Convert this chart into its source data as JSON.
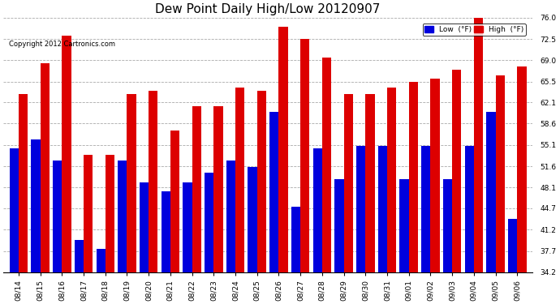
{
  "title": "Dew Point Daily High/Low 20120907",
  "copyright": "Copyright 2012 Cartronics.com",
  "dates": [
    "08/14",
    "08/15",
    "08/16",
    "08/17",
    "08/18",
    "08/19",
    "08/20",
    "08/21",
    "08/22",
    "08/23",
    "08/24",
    "08/25",
    "08/26",
    "08/27",
    "08/28",
    "08/29",
    "08/30",
    "08/31",
    "09/01",
    "09/02",
    "09/03",
    "09/04",
    "09/05",
    "09/06"
  ],
  "low": [
    54.5,
    56.0,
    52.5,
    39.5,
    38.0,
    52.5,
    49.0,
    47.5,
    49.0,
    50.5,
    52.5,
    51.5,
    60.5,
    45.0,
    54.5,
    49.5,
    55.0,
    55.0,
    49.5,
    55.0,
    49.5,
    55.0,
    60.5,
    43.0
  ],
  "high": [
    63.5,
    68.5,
    73.0,
    53.5,
    53.5,
    63.5,
    64.0,
    57.5,
    61.5,
    61.5,
    64.5,
    64.0,
    74.5,
    72.5,
    69.5,
    63.5,
    63.5,
    64.5,
    65.5,
    66.0,
    67.5,
    76.0,
    66.5,
    68.0
  ],
  "ylim": [
    34.2,
    76.0
  ],
  "yticks": [
    34.2,
    37.7,
    41.2,
    44.7,
    48.1,
    51.6,
    55.1,
    58.6,
    62.1,
    65.5,
    69.0,
    72.5,
    76.0
  ],
  "low_color": "#0000dd",
  "high_color": "#dd0000",
  "bg_color": "#ffffff",
  "grid_color": "#aaaaaa",
  "title_fontsize": 11,
  "label_fontsize": 6.5,
  "bar_width": 0.42
}
